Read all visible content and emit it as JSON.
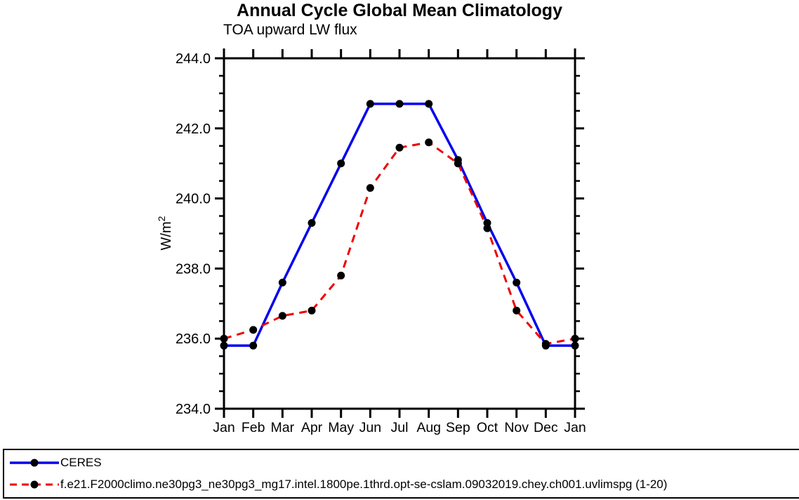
{
  "chart_data": {
    "type": "line",
    "title": "Annual Cycle Global Mean Climatology",
    "subtitle": "TOA upward LW flux",
    "ylabel_main": "W/m",
    "ylabel_sup": "2",
    "categories": [
      "Jan",
      "Feb",
      "Mar",
      "Apr",
      "May",
      "Jun",
      "Jul",
      "Aug",
      "Sep",
      "Oct",
      "Nov",
      "Dec",
      "Jan"
    ],
    "series": [
      {
        "name": "CERES",
        "color": "#0000ee",
        "style": "solid",
        "values": [
          235.8,
          235.8,
          237.6,
          239.3,
          241.0,
          242.7,
          242.7,
          242.7,
          241.1,
          239.3,
          237.6,
          235.8,
          235.8
        ]
      },
      {
        "name": "f.e21.F2000climo.ne30pg3_ne30pg3_mg17.intel.1800pe.1thrd.opt-se-cslam.09032019.chey.ch001.uvlimspg (1-20)",
        "color": "#ee0000",
        "style": "dashed",
        "values": [
          236.0,
          236.25,
          236.65,
          236.8,
          237.8,
          240.3,
          241.45,
          241.6,
          241.0,
          239.15,
          236.8,
          235.85,
          236.0
        ]
      }
    ],
    "ylim": [
      234.0,
      244.0
    ],
    "ytick_major_step": 2.0,
    "ytick_minor_step": 0.5,
    "yticklabels": [
      "244.0",
      "242.0",
      "240.0",
      "238.0",
      "236.0",
      "234.0"
    ],
    "marker_color": "#000000",
    "axis_color": "#000000",
    "grid": "off",
    "legend_position": "bottom-box"
  }
}
